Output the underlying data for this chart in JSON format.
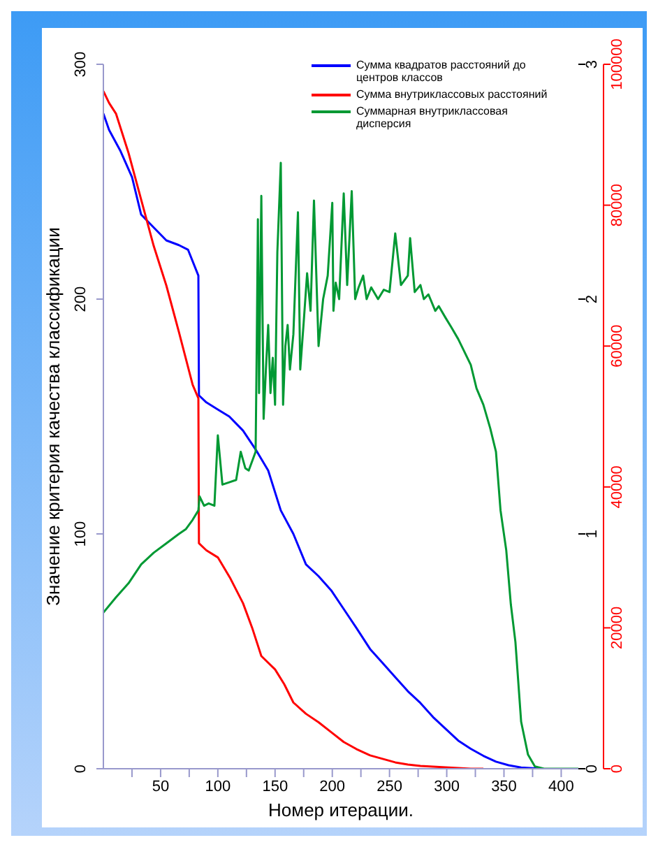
{
  "chart_data": {
    "type": "line",
    "xlabel": "Номер итерации.",
    "ylabel": "Значение критерия качества классификации",
    "xlim": [
      0,
      415
    ],
    "xticks": [
      {
        "value": 25,
        "label": null
      },
      50,
      {
        "value": 75,
        "label": null
      },
      100,
      {
        "value": 125,
        "label": null
      },
      150,
      {
        "value": 175,
        "label": null
      },
      200,
      {
        "value": 225,
        "label": null
      },
      250,
      {
        "value": 275,
        "label": null
      },
      300,
      {
        "value": 325,
        "label": null
      },
      350,
      {
        "value": 375,
        "label": null
      },
      400
    ],
    "ylim": [
      0,
      300
    ],
    "yticks": [
      0,
      100,
      200,
      300
    ],
    "y2lim": [
      0,
      3
    ],
    "y2ticks": [
      0,
      1,
      2,
      3
    ],
    "y3lim": [
      0,
      100000
    ],
    "y3ticks": [
      0,
      20000,
      40000,
      60000,
      80000,
      100000
    ],
    "grid": false,
    "legend": "top right",
    "marker": "none",
    "line_style": "solid",
    "series": [
      {
        "name": "Сумма квадратов расстояний до центров классов",
        "color": "#0000ff",
        "x": [
          0,
          5,
          15,
          25,
          33,
          45,
          55,
          66,
          74,
          83,
          83.5,
          90,
          100,
          110,
          122,
          133,
          144,
          155,
          166,
          177,
          188,
          199,
          210,
          221,
          233,
          244,
          255,
          266,
          277,
          288,
          299,
          310,
          321,
          332,
          343,
          354,
          365,
          375,
          382
        ],
        "values": [
          279,
          272,
          263,
          252,
          236,
          230,
          225,
          223,
          221,
          210,
          159,
          156,
          153,
          150,
          144,
          136,
          127,
          110,
          100,
          87,
          82,
          76,
          68,
          60,
          51,
          45,
          39,
          33,
          28,
          22,
          17,
          12,
          8.5,
          5.5,
          3,
          1.5,
          0.5,
          0.2,
          0
        ]
      },
      {
        "name": "Сумма внутриклассовых расстояний",
        "color": "#ff0000",
        "axis": "y3",
        "x": [
          0,
          5,
          11,
          22,
          33,
          44,
          55,
          66,
          78,
          83,
          83.5,
          90,
          100,
          111,
          122,
          130,
          138,
          150,
          158,
          166,
          177,
          188,
          199,
          210,
          221,
          233,
          244,
          255,
          266,
          277,
          288,
          299,
          310,
          321,
          332
        ],
        "values": [
          96200,
          94500,
          93000,
          87400,
          80800,
          74200,
          68600,
          62000,
          54500,
          52600,
          32000,
          31000,
          30000,
          27000,
          23500,
          20000,
          16000,
          14100,
          12000,
          9400,
          7800,
          6600,
          5200,
          3800,
          2800,
          1900,
          1400,
          900,
          600,
          400,
          300,
          200,
          100,
          0,
          0
        ]
      },
      {
        "name": "Суммарная внутриклассовая дисперсия",
        "color": "#009933",
        "axis": "y2",
        "x": [
          0,
          11,
          22,
          33,
          44,
          55,
          66,
          72,
          78,
          83,
          84,
          88,
          92,
          97,
          100,
          104,
          110,
          116,
          120,
          124,
          127,
          133,
          134,
          135,
          136,
          138,
          140,
          142,
          144,
          146,
          148,
          150,
          152,
          155,
          157,
          159,
          161,
          163,
          166,
          170,
          172,
          175,
          178,
          181,
          184,
          188,
          192,
          196,
          200,
          201,
          203,
          206,
          210,
          213,
          217,
          220,
          223,
          227,
          230,
          234,
          240,
          245,
          250,
          255,
          260,
          266,
          268,
          272,
          277,
          280,
          284,
          290,
          293,
          299,
          304,
          310,
          315,
          321,
          326,
          332,
          338,
          343,
          347,
          352,
          356,
          360,
          365,
          371,
          377,
          385,
          399,
          415
        ],
        "values": [
          0.665,
          0.73,
          0.79,
          0.87,
          0.92,
          0.96,
          1.0,
          1.02,
          1.06,
          1.1,
          1.16,
          1.12,
          1.13,
          1.12,
          1.42,
          1.21,
          1.22,
          1.23,
          1.35,
          1.28,
          1.27,
          1.35,
          1.8,
          2.34,
          1.6,
          2.44,
          1.49,
          1.7,
          1.89,
          1.6,
          1.75,
          1.55,
          2.2,
          2.58,
          1.55,
          1.8,
          1.89,
          1.7,
          1.85,
          2.37,
          1.7,
          1.9,
          2.11,
          1.95,
          2.42,
          1.8,
          2.0,
          2.1,
          2.41,
          1.95,
          2.07,
          2.0,
          2.45,
          2.06,
          2.46,
          2.0,
          2.05,
          2.1,
          2.0,
          2.05,
          2.0,
          2.04,
          2.03,
          2.28,
          2.06,
          2.1,
          2.26,
          2.03,
          2.06,
          2.0,
          2.02,
          1.95,
          1.97,
          1.92,
          1.88,
          1.83,
          1.78,
          1.72,
          1.62,
          1.55,
          1.45,
          1.35,
          1.1,
          0.93,
          0.7,
          0.54,
          0.2,
          0.06,
          0.01,
          0,
          0,
          0
        ]
      }
    ]
  }
}
